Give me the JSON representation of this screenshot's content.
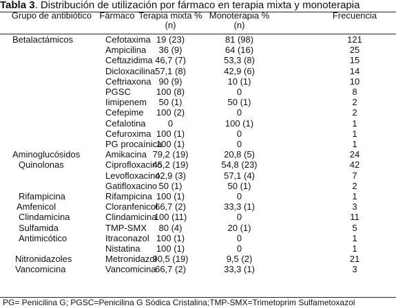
{
  "title": {
    "label": "Tabla 3",
    "text": ". Distribución de utilización por fármaco en terapia mixta y monoterapia"
  },
  "table": {
    "header": [
      "Grupo de antibiótico",
      "Fármaco",
      "Terapia mixta % (n)",
      "Monoterapia % (n)",
      "Frecuencia"
    ],
    "rows": [
      [
        "Betalactámicos",
        "Cefotaxima",
        "19 (23)",
        "81 (98)",
        121
      ],
      [
        null,
        "Ampicilina",
        "36 (9)",
        "64 (16)",
        25
      ],
      [
        null,
        "Ceftazidima",
        "46,7 (7)",
        "53,3 (8)",
        15
      ],
      [
        null,
        "Dicloxacilina",
        "57,1 (8)",
        "42,9 (6)",
        14
      ],
      [
        null,
        "Ceftriaxona",
        "90 (9)",
        "10 (1)",
        10
      ],
      [
        null,
        "PGSC",
        "100 (8)",
        "0",
        8
      ],
      [
        null,
        "Iimipenem",
        "50 (1)",
        "50 (1)",
        2
      ],
      [
        null,
        "Cefepime",
        "100 (2)",
        "0",
        2
      ],
      [
        null,
        "Cefalotina",
        "0",
        "100 (1)",
        1
      ],
      [
        null,
        "Cefuroxima",
        "100 (1)",
        "0",
        1
      ],
      [
        null,
        "PG procaínica",
        "100 (1)",
        "0",
        1
      ],
      [
        "Aminoglucósidos",
        "Amikacina",
        "79,2 (19)",
        "20,8 (5)",
        24
      ],
      [
        "Quinolonas",
        "Ciprofloxacino",
        "45,2 (19)",
        "54,8 (23)",
        42
      ],
      [
        null,
        "Levofloxacino",
        "42,9 (3)",
        "57,1 (4)",
        7
      ],
      [
        null,
        "Gatifloxacino",
        "50 (1)",
        "50 (1)",
        2
      ],
      [
        "Rifampicina",
        "Rifampicina",
        "100 (1)",
        "0",
        1
      ],
      [
        "Amfenicol",
        "Cloranfenicol",
        "66,7 (2)",
        "33,3 (1)",
        3
      ],
      [
        "Clindamicina",
        "Clindamicina",
        "100 (11)",
        "0",
        11
      ],
      [
        "Sulfamida",
        "TMP-SMX",
        "80 (4)",
        "20 (1)",
        5
      ],
      [
        "Antimicótico",
        "Itraconazol",
        "100 (1)",
        "0",
        1
      ],
      [
        null,
        "Nistatina",
        "100 (1)",
        "0",
        1
      ],
      [
        "Nitronidazoles",
        "Metronidazol",
        "90,5 (19)",
        "9,5 (2)",
        21
      ],
      [
        "Vancomicina",
        "Vancomicina",
        "66,7 (2)",
        "33,3 (1)",
        3
      ]
    ]
  },
  "note": "PG= Penicilina G; PGSC=Penicilina G Sódica Cristalina;TMP-SMX=Trimetoprim Sulfametoxazol"
}
